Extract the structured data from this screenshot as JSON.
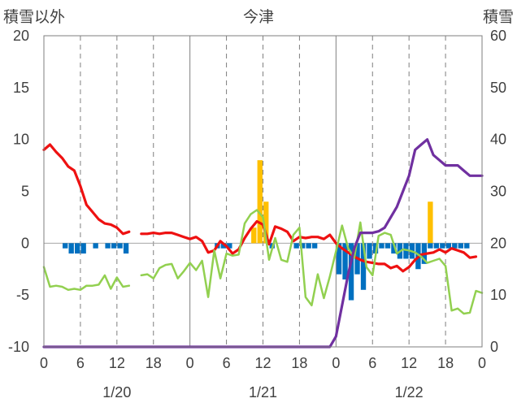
{
  "chart_data": {
    "type": "bar+line",
    "title": "今津",
    "ylabel_left": "積雪以外",
    "ylabel_right": "積雪",
    "ylim_left": [
      -10,
      20
    ],
    "ylim_right": [
      0,
      60
    ],
    "yticks_left": [
      "20",
      "15",
      "10",
      "5",
      "0",
      "-5",
      "-10"
    ],
    "yticks_right": [
      "60",
      "50",
      "40",
      "30",
      "20",
      "10",
      "0"
    ],
    "x_hours": [
      0,
      72
    ],
    "xticks": [
      "0",
      "6",
      "12",
      "18",
      "0",
      "6",
      "12",
      "18",
      "0",
      "6",
      "12",
      "18",
      "0"
    ],
    "date_labels": [
      "1/20",
      "1/21",
      "1/22"
    ],
    "grid": "dashed verticals every 6h, solid at day boundaries",
    "colors": {
      "red": "#ee1111",
      "green": "#92d050",
      "purple": "#7030a0",
      "orange": "#ffc000",
      "blue": "#0070c0"
    },
    "series": [
      {
        "color": "red",
        "kind": "line",
        "axis": "left",
        "points": [
          [
            0,
            9
          ],
          [
            1,
            9.5
          ],
          [
            2,
            8.8
          ],
          [
            3,
            8.2
          ],
          [
            4,
            7.4
          ],
          [
            5,
            7
          ],
          [
            6,
            5.5
          ],
          [
            7,
            3.7
          ],
          [
            8,
            3
          ],
          [
            9,
            2.3
          ],
          [
            10,
            1.9
          ],
          [
            11,
            1.8
          ],
          [
            12,
            1.5
          ],
          [
            13,
            0.9
          ],
          [
            14,
            1.1
          ],
          null,
          [
            16,
            0.9
          ],
          [
            17,
            0.9
          ],
          [
            18,
            1
          ],
          [
            19,
            0.9
          ],
          [
            20,
            1
          ],
          [
            21,
            1
          ],
          [
            22,
            0.8
          ],
          [
            23,
            0.6
          ],
          [
            24,
            0.4
          ],
          [
            25,
            0.6
          ],
          [
            26,
            0.2
          ],
          [
            27,
            -0.9
          ],
          [
            28,
            -0.7
          ],
          [
            29,
            0.2
          ],
          [
            30,
            -0.3
          ],
          [
            31,
            -1
          ],
          [
            32,
            -0.6
          ],
          [
            33,
            0.5
          ],
          [
            34,
            1.4
          ],
          [
            35,
            2.1
          ],
          [
            36,
            1.8
          ],
          [
            37,
            -0.1
          ],
          [
            38,
            1.6
          ],
          [
            39,
            1.4
          ],
          [
            40,
            1.1
          ],
          [
            41,
            0.2
          ],
          [
            42,
            0.6
          ],
          [
            43,
            0.5
          ],
          [
            44,
            0.6
          ],
          [
            45,
            0.6
          ],
          [
            46,
            0.4
          ],
          [
            47,
            0.8
          ],
          [
            48,
            0
          ],
          [
            49,
            -0.5
          ],
          [
            50,
            -0.9
          ],
          [
            51,
            -1.3
          ],
          [
            52,
            -1.6
          ],
          [
            53,
            -1.8
          ],
          [
            54,
            -1.9
          ],
          [
            55,
            -2
          ],
          [
            56,
            -2
          ],
          [
            57,
            -2.4
          ],
          [
            58,
            -2.2
          ],
          [
            59,
            -2.7
          ],
          [
            60,
            -2.3
          ],
          [
            61,
            -1.6
          ],
          [
            62,
            -1.1
          ],
          [
            63,
            -1
          ],
          [
            64,
            -0.9
          ],
          [
            65,
            -0.6
          ],
          [
            66,
            -0.9
          ],
          [
            67,
            -0.5
          ],
          [
            68,
            -0.7
          ],
          [
            69,
            -0.9
          ],
          [
            70,
            -1.4
          ],
          [
            71,
            -1.3
          ]
        ]
      },
      {
        "color": "green",
        "kind": "line",
        "axis": "left",
        "points": [
          [
            0,
            -2.3
          ],
          [
            1,
            -4.2
          ],
          [
            2,
            -4.1
          ],
          [
            3,
            -4.2
          ],
          [
            4,
            -4.5
          ],
          [
            5,
            -4.4
          ],
          [
            6,
            -4.5
          ],
          [
            7,
            -4.1
          ],
          [
            8,
            -4.1
          ],
          [
            9,
            -4
          ],
          [
            10,
            -3.1
          ],
          [
            11,
            -4.4
          ],
          [
            12,
            -3.3
          ],
          [
            13,
            -4.2
          ],
          [
            14,
            -4.1
          ],
          null,
          [
            16,
            -3.1
          ],
          [
            17,
            -3
          ],
          [
            18,
            -3.4
          ],
          [
            19,
            -2.4
          ],
          [
            20,
            -2.1
          ],
          [
            21,
            -2
          ],
          [
            22,
            -3.4
          ],
          [
            23,
            -2.7
          ],
          [
            24,
            -1.9
          ],
          [
            25,
            -2.6
          ],
          [
            26,
            -1.7
          ],
          [
            27,
            -5.2
          ],
          [
            28,
            -0.7
          ],
          [
            29,
            -3.4
          ],
          [
            30,
            -1
          ],
          [
            31,
            -1.2
          ],
          [
            32,
            -1.1
          ],
          [
            33,
            1.9
          ],
          [
            34,
            2.8
          ],
          [
            35,
            3.2
          ],
          [
            36,
            2.5
          ],
          [
            37,
            -1.6
          ],
          [
            38,
            0.5
          ],
          [
            39,
            -1.6
          ],
          [
            40,
            -1.8
          ],
          [
            41,
            0.8
          ],
          [
            42,
            1.5
          ],
          [
            43,
            -5.2
          ],
          [
            44,
            -6
          ],
          [
            45,
            -3
          ],
          [
            46,
            -5.3
          ],
          [
            47,
            -3.2
          ],
          [
            48,
            -0.8
          ],
          [
            49,
            1.7
          ],
          [
            50,
            -0.5
          ],
          [
            51,
            -1.4
          ],
          [
            52,
            2
          ],
          [
            53,
            -2.3
          ],
          [
            54,
            -3.1
          ],
          [
            55,
            0.7
          ],
          [
            56,
            1
          ],
          [
            57,
            0.8
          ],
          [
            58,
            -1
          ],
          [
            59,
            -0.6
          ],
          [
            60,
            -0.7
          ],
          [
            61,
            -0.9
          ],
          [
            62,
            -1.3
          ],
          [
            63,
            -1.9
          ],
          [
            64,
            -1.7
          ],
          [
            65,
            -1.5
          ],
          [
            66,
            -2.2
          ],
          [
            67,
            -6.5
          ],
          [
            68,
            -6.3
          ],
          [
            69,
            -6.8
          ],
          [
            70,
            -6.7
          ],
          [
            71,
            -4.6
          ],
          [
            72,
            -4.8
          ]
        ]
      },
      {
        "color": "purple",
        "kind": "line",
        "axis": "right",
        "points": [
          [
            0,
            0
          ],
          [
            47,
            0
          ],
          [
            48,
            2
          ],
          [
            49,
            8
          ],
          [
            50,
            14
          ],
          [
            51,
            19
          ],
          [
            52,
            22
          ],
          [
            53,
            22
          ],
          [
            54,
            22
          ],
          [
            55,
            22.3
          ],
          [
            56,
            23
          ],
          [
            57,
            25
          ],
          [
            58,
            27
          ],
          [
            59,
            30
          ],
          [
            60,
            33
          ],
          [
            61,
            38
          ],
          [
            62,
            39
          ],
          [
            63,
            40
          ],
          [
            64,
            37
          ],
          [
            65,
            36
          ],
          [
            66,
            35
          ],
          [
            67,
            35
          ],
          [
            68,
            35
          ],
          [
            69,
            34
          ],
          [
            70,
            33
          ],
          [
            71,
            33
          ],
          [
            72,
            33
          ]
        ]
      },
      {
        "color": "orange",
        "kind": "bar",
        "axis": "left",
        "bars": [
          [
            34,
            1.5
          ],
          [
            35,
            8
          ],
          [
            36,
            4
          ],
          [
            63,
            4
          ]
        ]
      },
      {
        "color": "blue",
        "kind": "bar",
        "axis": "left",
        "bars": [
          [
            3,
            -0.5
          ],
          [
            4,
            -1
          ],
          [
            5,
            -1
          ],
          [
            6,
            -1
          ],
          [
            8,
            -0.5
          ],
          [
            10,
            -0.5
          ],
          [
            11,
            -0.5
          ],
          [
            12,
            -0.5
          ],
          [
            13,
            -1
          ],
          [
            28,
            -0.5
          ],
          [
            29,
            -0.5
          ],
          [
            30,
            -0.5
          ],
          [
            37,
            -0.5
          ],
          [
            41,
            -0.5
          ],
          [
            42,
            -0.5
          ],
          [
            43,
            -0.5
          ],
          [
            44,
            -0.5
          ],
          [
            48,
            -3
          ],
          [
            49,
            -3.5
          ],
          [
            50,
            -5.5
          ],
          [
            51,
            -3
          ],
          [
            52,
            -4.5
          ],
          [
            53,
            -1.5
          ],
          [
            54,
            -1
          ],
          [
            55,
            -0.5
          ],
          [
            56,
            -0.5
          ],
          [
            57,
            -1
          ],
          [
            58,
            -1.5
          ],
          [
            59,
            -1.5
          ],
          [
            60,
            -1.5
          ],
          [
            61,
            -2.5
          ],
          [
            62,
            -2
          ],
          [
            63,
            -0.5
          ],
          [
            64,
            -0.5
          ],
          [
            65,
            -0.5
          ],
          [
            66,
            -0.5
          ],
          [
            67,
            -0.5
          ],
          [
            68,
            -0.5
          ],
          [
            69,
            -0.5
          ]
        ]
      }
    ]
  }
}
